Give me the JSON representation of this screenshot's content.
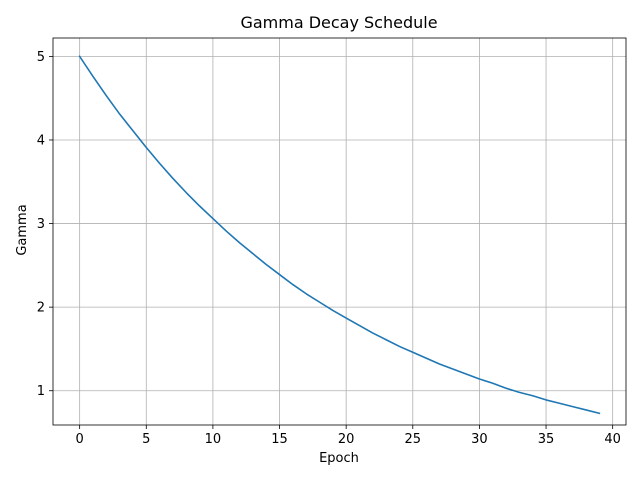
{
  "chart_data": {
    "type": "line",
    "title": "Gamma Decay Schedule",
    "xlabel": "Epoch",
    "ylabel": "Gamma",
    "xlim": [
      -2,
      41
    ],
    "ylim": [
      0.59,
      5.22
    ],
    "xticks": [
      0,
      5,
      10,
      15,
      20,
      25,
      30,
      35,
      40
    ],
    "yticks": [
      1,
      2,
      3,
      4,
      5
    ],
    "grid": true,
    "legend": false,
    "series": [
      {
        "color": "#1f77b4",
        "x": [
          0,
          1,
          2,
          3,
          4,
          5,
          6,
          7,
          8,
          9,
          10,
          11,
          12,
          13,
          14,
          15,
          16,
          17,
          18,
          19,
          20,
          21,
          22,
          23,
          24,
          25,
          26,
          27,
          28,
          29,
          30,
          31,
          32,
          33,
          34,
          35,
          36,
          37,
          38,
          39
        ],
        "y": [
          5.0,
          4.76,
          4.53,
          4.31,
          4.11,
          3.91,
          3.72,
          3.54,
          3.37,
          3.21,
          3.06,
          2.91,
          2.77,
          2.64,
          2.51,
          2.39,
          2.27,
          2.16,
          2.06,
          1.96,
          1.87,
          1.78,
          1.69,
          1.61,
          1.53,
          1.46,
          1.39,
          1.32,
          1.26,
          1.2,
          1.14,
          1.09,
          1.03,
          0.98,
          0.94,
          0.89,
          0.85,
          0.81,
          0.77,
          0.73
        ]
      }
    ]
  }
}
